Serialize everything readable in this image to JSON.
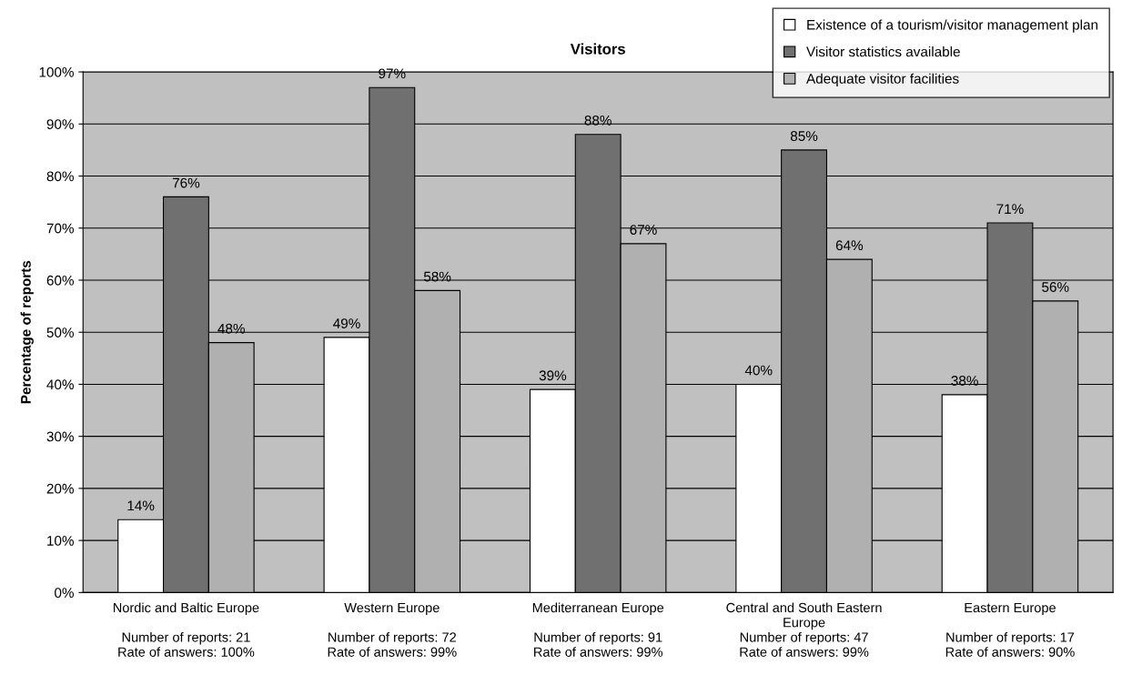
{
  "chart_data": {
    "type": "bar",
    "title": "Visitors",
    "ylabel": "Percentage of reports",
    "categories": [
      "Nordic and Baltic Europe\n\nNumber of reports: 21\nRate of answers: 100%",
      "Western Europe\n\nNumber of reports: 72\nRate of answers: 99%",
      "Mediterranean Europe\n\nNumber of reports: 91\nRate of answers: 99%",
      "Central and South Eastern\nEurope\nNumber of reports: 47\nRate of answers: 99%",
      "Eastern Europe\n\nNumber of reports: 17\nRate of answers: 90%"
    ],
    "series": [
      {
        "name": "Existence of a tourism/visitor management plan",
        "color": "#ffffff",
        "values": [
          14,
          49,
          39,
          40,
          38
        ],
        "value_labels": [
          "14%",
          "49%",
          "39%",
          "40%",
          "38%"
        ]
      },
      {
        "name": "Visitor statistics available",
        "color": "#707070",
        "values": [
          76,
          97,
          88,
          85,
          71
        ],
        "value_labels": [
          "76%",
          "97%",
          "88%",
          "85%",
          "71%"
        ]
      },
      {
        "name": "Adequate visitor facilities",
        "color": "#b0b0b0",
        "values": [
          48,
          58,
          67,
          64,
          56
        ],
        "value_labels": [
          "48%",
          "58%",
          "67%",
          "64%",
          "56%"
        ]
      }
    ],
    "ylim": [
      0,
      100
    ],
    "yticks": [
      {
        "value": 0,
        "label": "0%"
      },
      {
        "value": 10,
        "label": "10%"
      },
      {
        "value": 20,
        "label": "20%"
      },
      {
        "value": 30,
        "label": "30%"
      },
      {
        "value": 40,
        "label": "40%"
      },
      {
        "value": 50,
        "label": "50%"
      },
      {
        "value": 60,
        "label": "60%"
      },
      {
        "value": 70,
        "label": "70%"
      },
      {
        "value": 80,
        "label": "80%"
      },
      {
        "value": 90,
        "label": "90%"
      },
      {
        "value": 100,
        "label": "100%"
      }
    ],
    "grid": "y",
    "legend": "top right"
  }
}
